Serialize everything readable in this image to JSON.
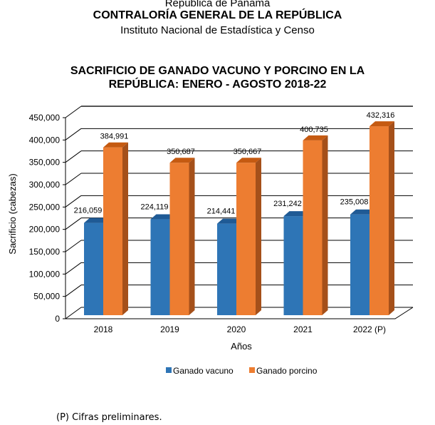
{
  "header": {
    "line1": "República de Panamá",
    "line2": "CONTRALORÍA GENERAL DE LA REPÚBLICA",
    "line3": "Instituto Nacional de Estadística y Censo"
  },
  "chart_data": {
    "type": "bar",
    "title": "SACRIFICIO DE GANADO VACUNO Y PORCINO EN LA REPÚBLICA: ENERO - AGOSTO 2018-22",
    "title_lines": [
      "SACRIFICIO DE GANADO VACUNO Y PORCINO EN LA",
      "REPÚBLICA: ENERO - AGOSTO 2018-22"
    ],
    "xlabel": "Años",
    "ylabel": "Sacrificio (cabezas)",
    "ylim": [
      0,
      450000
    ],
    "yticks": [
      "0",
      "50,000",
      "100,000",
      "150,000",
      "200,000",
      "250,000",
      "300,000",
      "350,000",
      "400,000",
      "450,000"
    ],
    "categories": [
      "2018",
      "2019",
      "2020",
      "2021",
      "2022 (P)"
    ],
    "series": [
      {
        "name": "Ganado vacuno",
        "color": "#2e75b6",
        "values": [
          216059,
          224119,
          214441,
          231242,
          235008
        ],
        "labels": [
          "216,059",
          "224,119",
          "214,441",
          "231,242",
          "235,008"
        ]
      },
      {
        "name": "Ganado porcino",
        "color": "#ed7d31",
        "values": [
          384991,
          350687,
          350667,
          400735,
          432316
        ],
        "labels": [
          "384,991",
          "350,687",
          "350,667",
          "400,735",
          "432,316"
        ]
      }
    ],
    "legend": "bottom",
    "grid": true
  },
  "footnote": "(P) Cifras preliminares."
}
